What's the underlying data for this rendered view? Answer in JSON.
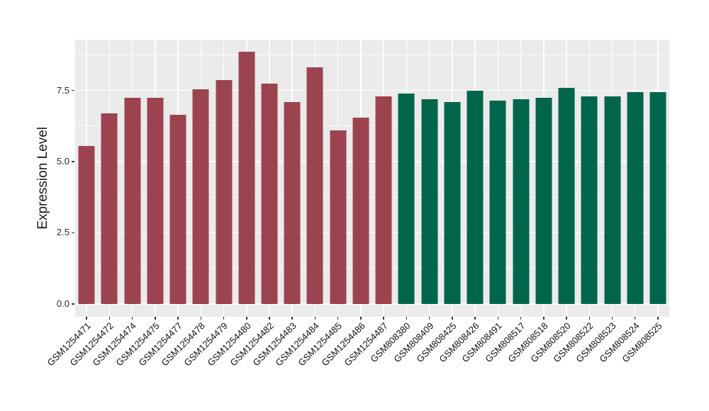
{
  "chart_data": {
    "type": "bar",
    "title": "",
    "xlabel": "",
    "ylabel": "Expression Level",
    "categories": [
      "GSM1254471",
      "GSM1254472",
      "GSM1254474",
      "GSM1254475",
      "GSM1254477",
      "GSM1254478",
      "GSM1254479",
      "GSM1254480",
      "GSM1254482",
      "GSM1254483",
      "GSM1254484",
      "GSM1254485",
      "GSM1254486",
      "GSM1254487",
      "GSM808380",
      "GSM808409",
      "GSM808425",
      "GSM808426",
      "GSM808491",
      "GSM808517",
      "GSM808518",
      "GSM808520",
      "GSM808522",
      "GSM808523",
      "GSM808524",
      "GSM808525"
    ],
    "values": [
      5.55,
      6.7,
      7.25,
      7.25,
      6.65,
      7.55,
      7.85,
      8.85,
      7.75,
      7.1,
      8.3,
      6.1,
      6.55,
      7.3,
      7.4,
      7.2,
      7.1,
      7.5,
      7.15,
      7.2,
      7.25,
      7.6,
      7.3,
      7.3,
      7.45,
      7.45
    ],
    "colors": [
      "#9B4450",
      "#9B4450",
      "#9B4450",
      "#9B4450",
      "#9B4450",
      "#9B4450",
      "#9B4450",
      "#9B4450",
      "#9B4450",
      "#9B4450",
      "#9B4450",
      "#9B4450",
      "#9B4450",
      "#9B4450",
      "#00664B",
      "#00664B",
      "#00664B",
      "#00664B",
      "#00664B",
      "#00664B",
      "#00664B",
      "#00664B",
      "#00664B",
      "#00664B",
      "#00664B",
      "#00664B"
    ],
    "y_axis": {
      "range": [
        -0.45,
        9.28
      ],
      "ticks": [
        {
          "value": 0.0,
          "label": "0.0"
        },
        {
          "value": 2.5,
          "label": "2.5"
        },
        {
          "value": 5.0,
          "label": "5.0"
        },
        {
          "value": 7.5,
          "label": "7.5"
        }
      ],
      "minor_ticks": [
        1.25,
        3.75,
        6.25,
        8.75
      ]
    },
    "style": {
      "panel_background": "#EBEBEB",
      "grid_color": "#FFFFFF",
      "group1_color": "#9B4450",
      "group2_color": "#00664B"
    },
    "legend": "none",
    "grid": "on",
    "x_tick_rotation_deg": 45
  }
}
